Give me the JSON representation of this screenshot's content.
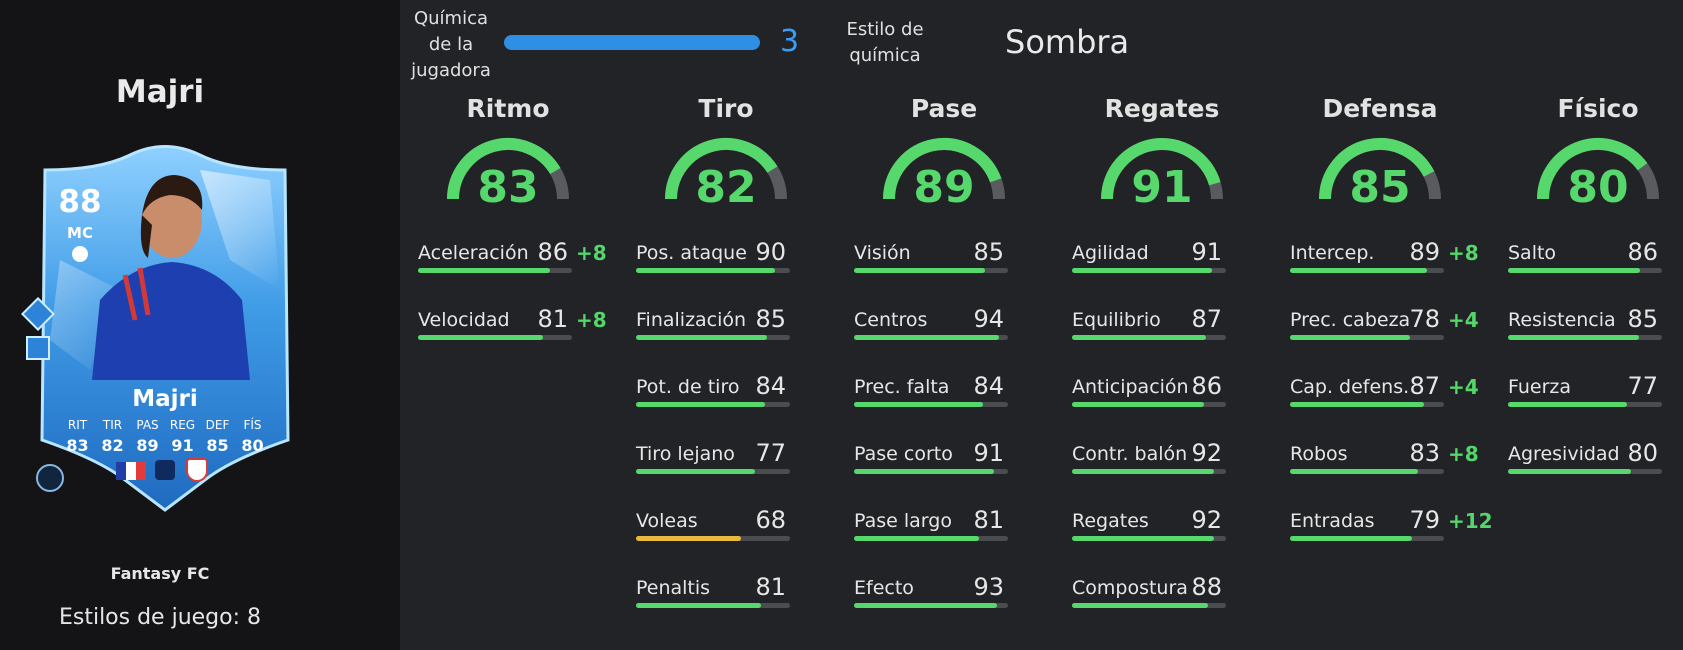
{
  "player": {
    "name": "Majri",
    "rating": "88",
    "position": "MC",
    "card_name": "Majri",
    "card_stats": [
      {
        "label": "RIT",
        "value": "83"
      },
      {
        "label": "TIR",
        "value": "82"
      },
      {
        "label": "PAS",
        "value": "89"
      },
      {
        "label": "REG",
        "value": "91"
      },
      {
        "label": "DEF",
        "value": "85"
      },
      {
        "label": "FÍS",
        "value": "80"
      }
    ],
    "club": "Fantasy FC",
    "playstyles": "Estilos de juego: 8"
  },
  "chemistry": {
    "label": "Química de la jugadora",
    "value": "3",
    "level_fraction": 1.0,
    "style_label": "Estilo de química",
    "style_value": "Sombra"
  },
  "colors": {
    "green": "#56d86c",
    "yellow": "#e9b93f",
    "blue": "#2f8fe4",
    "card_blue": "#3f9be6"
  },
  "categories": [
    {
      "title": "Ritmo",
      "value": 83,
      "stats": [
        {
          "label": "Aceleración",
          "value": 86,
          "boost": "+8"
        },
        {
          "label": "Velocidad",
          "value": 81,
          "boost": "+8"
        }
      ]
    },
    {
      "title": "Tiro",
      "value": 82,
      "stats": [
        {
          "label": "Pos. ataque",
          "value": 90,
          "boost": ""
        },
        {
          "label": "Finalización",
          "value": 85,
          "boost": ""
        },
        {
          "label": "Pot. de tiro",
          "value": 84,
          "boost": ""
        },
        {
          "label": "Tiro lejano",
          "value": 77,
          "boost": ""
        },
        {
          "label": "Voleas",
          "value": 68,
          "boost": ""
        },
        {
          "label": "Penaltis",
          "value": 81,
          "boost": ""
        }
      ]
    },
    {
      "title": "Pase",
      "value": 89,
      "stats": [
        {
          "label": "Visión",
          "value": 85,
          "boost": ""
        },
        {
          "label": "Centros",
          "value": 94,
          "boost": ""
        },
        {
          "label": "Prec. falta",
          "value": 84,
          "boost": ""
        },
        {
          "label": "Pase corto",
          "value": 91,
          "boost": ""
        },
        {
          "label": "Pase largo",
          "value": 81,
          "boost": ""
        },
        {
          "label": "Efecto",
          "value": 93,
          "boost": ""
        }
      ]
    },
    {
      "title": "Regates",
      "value": 91,
      "stats": [
        {
          "label": "Agilidad",
          "value": 91,
          "boost": ""
        },
        {
          "label": "Equilibrio",
          "value": 87,
          "boost": ""
        },
        {
          "label": "Anticipación",
          "value": 86,
          "boost": ""
        },
        {
          "label": "Contr. balón",
          "value": 92,
          "boost": ""
        },
        {
          "label": "Regates",
          "value": 92,
          "boost": ""
        },
        {
          "label": "Compostura",
          "value": 88,
          "boost": ""
        }
      ]
    },
    {
      "title": "Defensa",
      "value": 85,
      "stats": [
        {
          "label": "Intercep.",
          "value": 89,
          "boost": "+8"
        },
        {
          "label": "Prec. cabeza",
          "value": 78,
          "boost": "+4"
        },
        {
          "label": "Cap. defens.",
          "value": 87,
          "boost": "+4"
        },
        {
          "label": "Robos",
          "value": 83,
          "boost": "+8"
        },
        {
          "label": "Entradas",
          "value": 79,
          "boost": "+12"
        }
      ]
    },
    {
      "title": "Físico",
      "value": 80,
      "stats": [
        {
          "label": "Salto",
          "value": 86,
          "boost": ""
        },
        {
          "label": "Resistencia",
          "value": 85,
          "boost": ""
        },
        {
          "label": "Fuerza",
          "value": 77,
          "boost": ""
        },
        {
          "label": "Agresividad",
          "value": 80,
          "boost": ""
        }
      ]
    }
  ]
}
